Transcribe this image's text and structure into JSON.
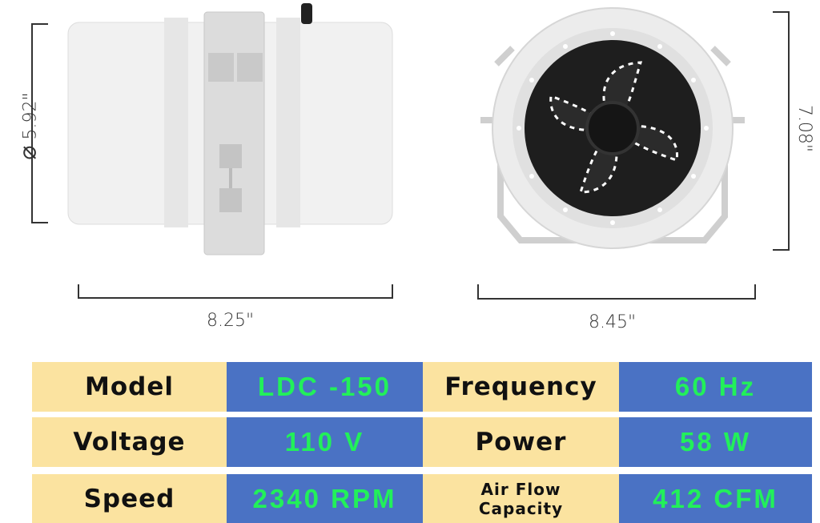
{
  "dimensions": {
    "diameter": "5.92\"",
    "side_length": "8.25\"",
    "front_height": "7.08\"",
    "front_width": "8.45\""
  },
  "specs": [
    {
      "label": "Model",
      "value": "LDC -150"
    },
    {
      "label": "Frequency",
      "value": "60 Hz"
    },
    {
      "label": "Voltage",
      "value": "110 V"
    },
    {
      "label": "Power",
      "value": "58 W"
    },
    {
      "label": "Speed",
      "value": "2340 RPM"
    },
    {
      "label_line1": "Air Flow",
      "label_line2": "Capacity",
      "value": "412 CFM"
    }
  ],
  "colors": {
    "label_bg": "#fbe3a0",
    "value_bg": "#4a72c4",
    "value_text": "#22f05a"
  }
}
